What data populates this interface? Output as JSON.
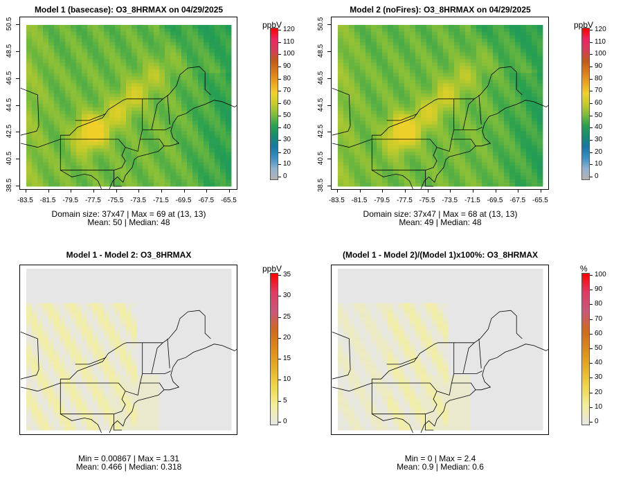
{
  "colors": {
    "background": "#e6e6e6",
    "map_lines": "#000000",
    "absolute_scale": [
      "#b3b3b3",
      "#8fb1d1",
      "#3b8fc2",
      "#1877a8",
      "#148c6e",
      "#2aa14f",
      "#7fbd3a",
      "#c8cc2a",
      "#f0d12a",
      "#eba21f",
      "#d97a1a",
      "#c0591a",
      "#d63c5a",
      "#ee2460",
      "#ff0000"
    ],
    "difference_scale": [
      "#e6e6e6",
      "#f3ef9c",
      "#f0d74a",
      "#e7b024",
      "#dc8a1a",
      "#cf6a1e",
      "#c9577a",
      "#e23b62",
      "#ff0000"
    ]
  },
  "panels": [
    {
      "title": "Model 1 (basecase): O3_8HRMAX on 04/29/2025",
      "stats_line1": "Domain size: 37x47 | Max = 69 at (13, 13)",
      "stats_line2": "Mean: 50 |  Median: 48",
      "show_axes": true,
      "x_ticks": [
        "-83.5",
        "-81.5",
        "-79.5",
        "-77.5",
        "-75.5",
        "-73.5",
        "-71.5",
        "-69.5",
        "-67.5",
        "-65.5"
      ],
      "y_ticks": [
        "38.5",
        "40.5",
        "42.5",
        "44.5",
        "46.5",
        "48.5",
        "50.5"
      ],
      "colorbar": {
        "unit": "ppbV",
        "ticks": [
          "120",
          "110",
          "100",
          "90",
          "80",
          "70",
          "60",
          "50",
          "40",
          "30",
          "20",
          "10",
          "0"
        ],
        "scale": "absolute"
      },
      "field": {
        "type": "ozone",
        "peak": 69
      }
    },
    {
      "title": "Model 2 (noFires): O3_8HRMAX on 04/29/2025",
      "stats_line1": "Domain size: 37x47 | Max = 68 at (13, 13)",
      "stats_line2": "Mean: 49 |  Median: 48",
      "show_axes": true,
      "x_ticks": [
        "-83.5",
        "-81.5",
        "-79.5",
        "-77.5",
        "-75.5",
        "-73.5",
        "-71.5",
        "-69.5",
        "-67.5",
        "-65.5"
      ],
      "y_ticks": [
        "38.5",
        "40.5",
        "42.5",
        "44.5",
        "46.5",
        "48.5",
        "50.5"
      ],
      "colorbar": {
        "unit": "ppbV",
        "ticks": [
          "120",
          "110",
          "100",
          "90",
          "80",
          "70",
          "60",
          "50",
          "40",
          "30",
          "20",
          "10",
          "0"
        ],
        "scale": "absolute"
      },
      "field": {
        "type": "ozone",
        "peak": 68
      }
    },
    {
      "title": "Model 1 - Model 2: O3_8HRMAX",
      "stats_line1": "Min = 0.00867 | Max = 1.31",
      "stats_line2": "Mean: 0.466 |  Median: 0.318",
      "show_axes": false,
      "colorbar": {
        "unit": "ppbV",
        "ticks": [
          "35",
          "30",
          "25",
          "20",
          "15",
          "10",
          "5",
          "0"
        ],
        "scale": "difference"
      },
      "field": {
        "type": "difference"
      }
    },
    {
      "title": "(Model 1 - Model 2)/(Model 1)x100%: O3_8HRMAX",
      "stats_line1": "Min = 0 | Max = 2.4",
      "stats_line2": "Mean: 0.9 |  Median: 0.6",
      "show_axes": false,
      "colorbar": {
        "unit": "%",
        "ticks": [
          "100",
          "90",
          "80",
          "70",
          "60",
          "50",
          "40",
          "30",
          "20",
          "10",
          "0"
        ],
        "scale": "difference"
      },
      "field": {
        "type": "percent"
      }
    }
  ],
  "chart_data": [
    {
      "type": "heatmap",
      "title": "Model 1 (basecase): O3_8HRMAX on 04/29/2025",
      "grid": "37x47",
      "max": 69,
      "max_at": "(13, 13)",
      "mean": 50,
      "median": 48,
      "xlim": [
        -83.5,
        -65.5
      ],
      "ylim": [
        38.5,
        50.5
      ],
      "value_range": [
        0,
        120
      ],
      "units": "ppbV"
    },
    {
      "type": "heatmap",
      "title": "Model 2 (noFires): O3_8HRMAX on 04/29/2025",
      "grid": "37x47",
      "max": 68,
      "max_at": "(13, 13)",
      "mean": 49,
      "median": 48,
      "xlim": [
        -83.5,
        -65.5
      ],
      "ylim": [
        38.5,
        50.5
      ],
      "value_range": [
        0,
        120
      ],
      "units": "ppbV"
    },
    {
      "type": "heatmap",
      "title": "Model 1 - Model 2: O3_8HRMAX",
      "min": 0.00867,
      "max": 1.31,
      "mean": 0.466,
      "median": 0.318,
      "value_range": [
        0,
        35
      ],
      "units": "ppbV"
    },
    {
      "type": "heatmap",
      "title": "(Model 1 - Model 2)/(Model 1)x100%: O3_8HRMAX",
      "min": 0,
      "max": 2.4,
      "mean": 0.9,
      "median": 0.6,
      "value_range": [
        0,
        100
      ],
      "units": "%"
    }
  ]
}
